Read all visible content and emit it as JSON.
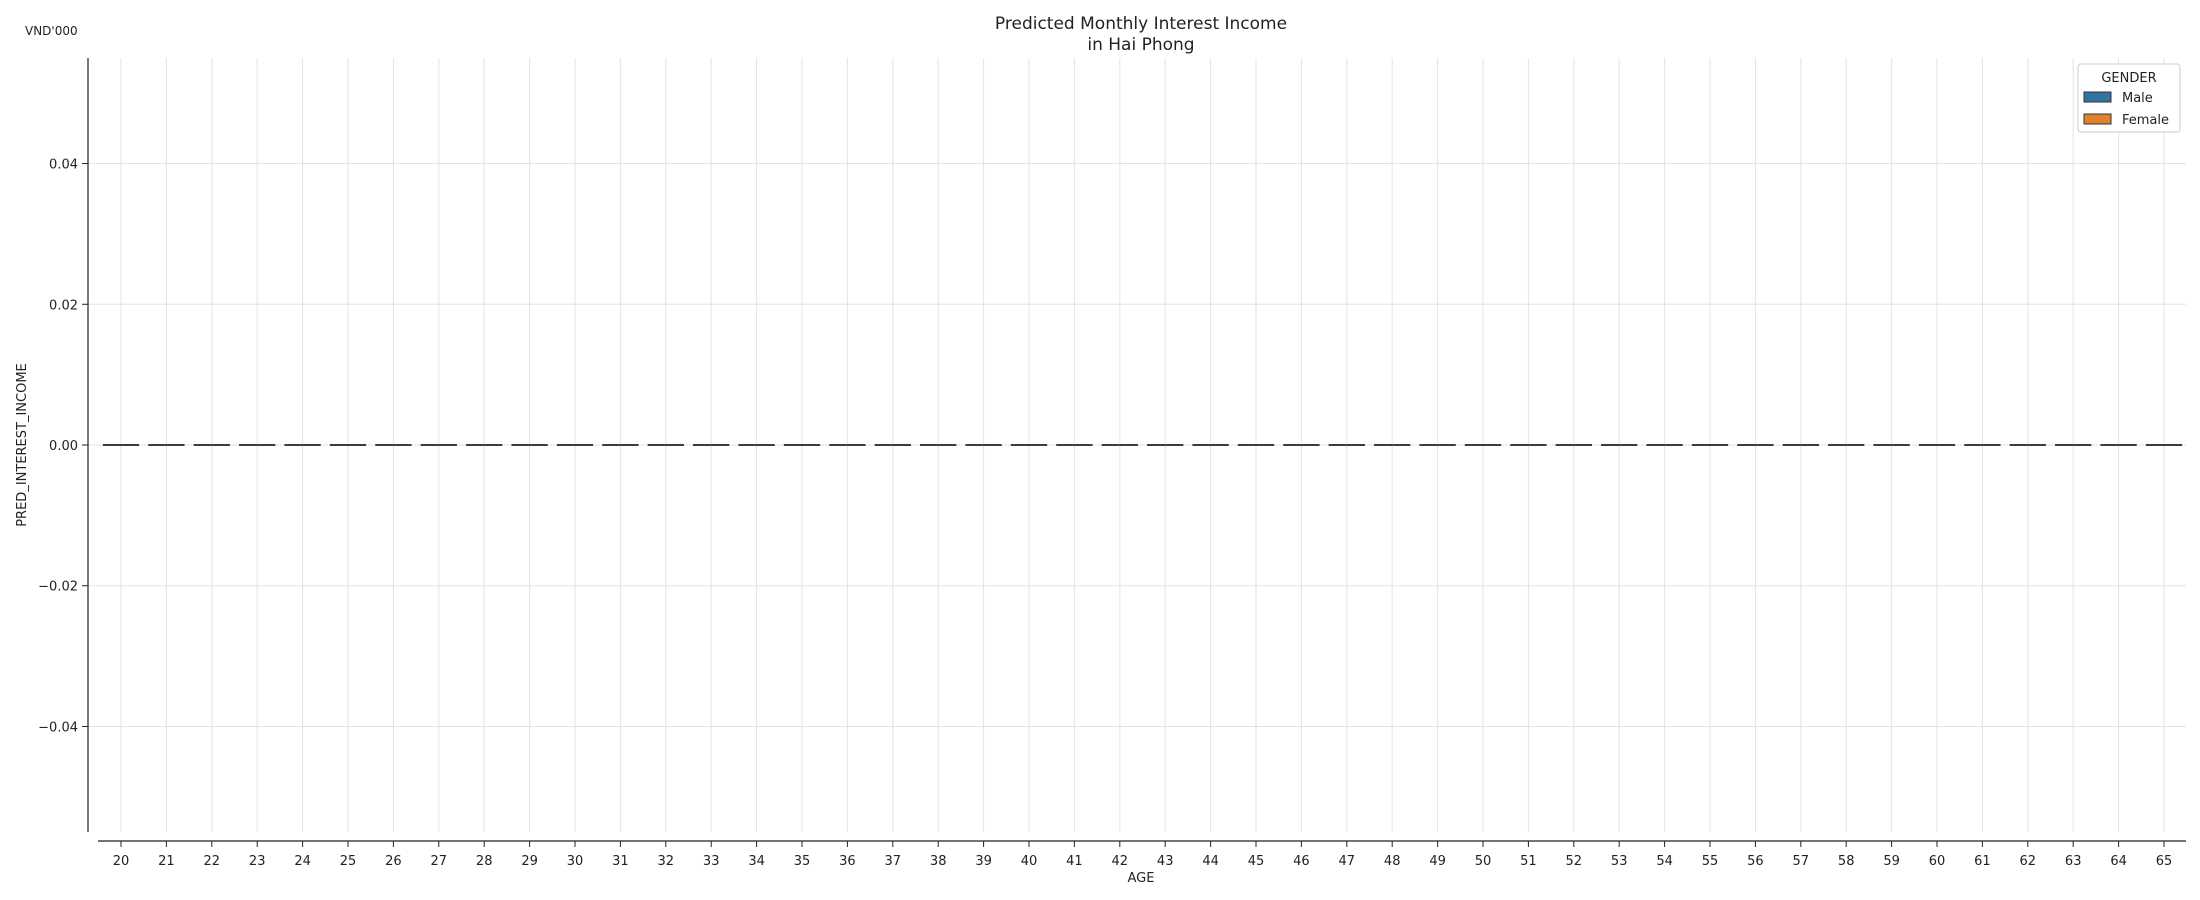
{
  "chart_data": {
    "type": "box",
    "title_lines": [
      "Predicted Monthly Interest Income",
      "in Hai Phong"
    ],
    "unit_label": "VND'000",
    "xlabel": "AGE",
    "ylabel": "PRED_INTEREST_INCOME",
    "ylim": [
      -0.055,
      0.055
    ],
    "yticks": [
      -0.04,
      -0.02,
      0.0,
      0.02,
      0.04
    ],
    "ytick_labels": [
      "−0.04",
      "−0.02",
      "0.00",
      "0.02",
      "0.04"
    ],
    "categories": [
      "20",
      "21",
      "22",
      "23",
      "24",
      "25",
      "26",
      "27",
      "28",
      "29",
      "30",
      "31",
      "32",
      "33",
      "34",
      "35",
      "36",
      "37",
      "38",
      "39",
      "40",
      "41",
      "42",
      "43",
      "44",
      "45",
      "46",
      "47",
      "48",
      "49",
      "50",
      "51",
      "52",
      "53",
      "54",
      "55",
      "56",
      "57",
      "58",
      "59",
      "60",
      "61",
      "62",
      "63",
      "64",
      "65"
    ],
    "series": [
      {
        "name": "Male",
        "color": "#3274a1",
        "values": [
          0,
          0,
          0,
          0,
          0,
          0,
          0,
          0,
          0,
          0,
          0,
          0,
          0,
          0,
          0,
          0,
          0,
          0,
          0,
          0,
          0,
          0,
          0,
          0,
          0,
          0,
          0,
          0,
          0,
          0,
          0,
          0,
          0,
          0,
          0,
          0,
          0,
          0,
          0,
          0,
          0,
          0,
          0,
          0,
          0,
          0
        ]
      },
      {
        "name": "Female",
        "color": "#e1812c",
        "values": [
          0,
          0,
          0,
          0,
          0,
          0,
          0,
          0,
          0,
          0,
          0,
          0,
          0,
          0,
          0,
          0,
          0,
          0,
          0,
          0,
          0,
          0,
          0,
          0,
          0,
          0,
          0,
          0,
          0,
          0,
          0,
          0,
          0,
          0,
          0,
          0,
          0,
          0,
          0,
          0,
          0,
          0,
          0,
          0,
          0,
          0
        ]
      }
    ],
    "legend": {
      "title": "GENDER",
      "position": "top-right"
    },
    "grid": true
  }
}
